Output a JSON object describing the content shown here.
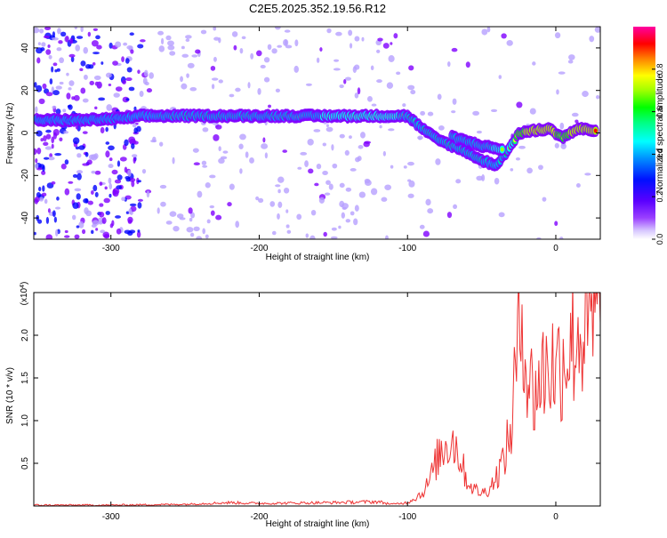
{
  "title": "C2E5.2025.352.19.56.R12",
  "chart_data": [
    {
      "type": "heatmap",
      "xlabel": "Height of straight line (km)",
      "ylabel": "Frequency (Hz)",
      "xlim": [
        -352,
        30
      ],
      "ylim": [
        -50,
        50
      ],
      "xticks": [
        -300,
        -200,
        -100,
        0
      ],
      "yticks": [
        -40,
        -20,
        0,
        20,
        40
      ],
      "colorbar": {
        "label": "Normalized spectral amplitude",
        "range": [
          0,
          1
        ],
        "ticks": [
          0.0,
          0.2,
          0.4,
          0.6,
          0.8
        ],
        "tick_labels": [
          "0.0",
          "0.2",
          "0.4",
          "0.6",
          "0.8"
        ],
        "colors": [
          "#ffffff",
          "#b7a0ff",
          "#7f00ff",
          "#0000ff",
          "#00a0ff",
          "#00ffff",
          "#00ff80",
          "#00ff00",
          "#a0ff00",
          "#ffff00",
          "#ff8000",
          "#ff0000",
          "#ff00a0"
        ]
      },
      "ridge": [
        {
          "x": -350,
          "freq": 6,
          "amp": 0.3
        },
        {
          "x": -320,
          "freq": 6,
          "amp": 0.32
        },
        {
          "x": -290,
          "freq": 7,
          "amp": 0.28
        },
        {
          "x": -280,
          "freq": 8,
          "amp": 0.45
        },
        {
          "x": -250,
          "freq": 8,
          "amp": 0.55
        },
        {
          "x": -200,
          "freq": 8,
          "amp": 0.55
        },
        {
          "x": -150,
          "freq": 8,
          "amp": 0.58
        },
        {
          "x": -110,
          "freq": 8,
          "amp": 0.6
        },
        {
          "x": -100,
          "freq": 8,
          "amp": 0.55
        },
        {
          "x": -90,
          "freq": 2,
          "amp": 0.5
        },
        {
          "x": -80,
          "freq": -3,
          "amp": 0.55
        },
        {
          "x": -70,
          "freq": -6,
          "amp": 0.55
        },
        {
          "x": -60,
          "freq": -9,
          "amp": 0.55
        },
        {
          "x": -50,
          "freq": -13,
          "amp": 0.55
        },
        {
          "x": -40,
          "freq": -15,
          "amp": 0.45
        },
        {
          "x": -30,
          "freq": -6,
          "amp": 0.6
        },
        {
          "x": -25,
          "freq": 0,
          "amp": 0.8
        },
        {
          "x": -15,
          "freq": 1,
          "amp": 0.85
        },
        {
          "x": -5,
          "freq": 2,
          "amp": 0.85
        },
        {
          "x": 5,
          "freq": -2,
          "amp": 0.8
        },
        {
          "x": 15,
          "freq": 2,
          "amp": 0.85
        },
        {
          "x": 28,
          "freq": 1,
          "amp": 0.85
        }
      ],
      "ridge_branch": [
        {
          "x": -70,
          "freq": -2,
          "amp": 0.55
        },
        {
          "x": -50,
          "freq": -6,
          "amp": 0.55
        },
        {
          "x": -35,
          "freq": -8,
          "amp": 0.6
        }
      ]
    },
    {
      "type": "line",
      "xlabel": "Height of straight line (km)",
      "ylabel": "SNR (10 * v/v)",
      "y_multiplier_label": "(x10",
      "y_multiplier_exp": "4",
      "y_multiplier_close": ")",
      "xlim": [
        -352,
        30
      ],
      "ylim": [
        0,
        2.5
      ],
      "xticks": [
        -300,
        -200,
        -100,
        0
      ],
      "yticks": [
        0.5,
        1.0,
        1.5,
        2.0
      ],
      "ytick_labels": [
        "0.5",
        "1.0",
        "1.5",
        "2.0"
      ],
      "color": "#ee3333",
      "series": [
        {
          "x": [
            -352,
            -300,
            -250,
            -220,
            -200,
            -150,
            -120,
            -110,
            -100,
            -90,
            -85,
            -80,
            -75,
            -70,
            -65,
            -60,
            -55,
            -50,
            -45,
            -40,
            -35,
            -30,
            -28,
            -25,
            -22,
            -20,
            -15,
            -10,
            -5,
            0,
            5,
            10,
            15,
            20,
            25,
            30
          ],
          "y": [
            0.01,
            0.01,
            0.02,
            0.04,
            0.03,
            0.04,
            0.05,
            0.02,
            0.04,
            0.15,
            0.3,
            0.55,
            0.7,
            0.8,
            0.6,
            0.3,
            0.2,
            0.15,
            0.2,
            0.35,
            0.55,
            0.9,
            1.4,
            1.9,
            2.45,
            1.6,
            1.3,
            1.5,
            1.7,
            1.6,
            1.75,
            1.9,
            2.05,
            2.0,
            2.1,
            2.15
          ]
        }
      ]
    }
  ]
}
